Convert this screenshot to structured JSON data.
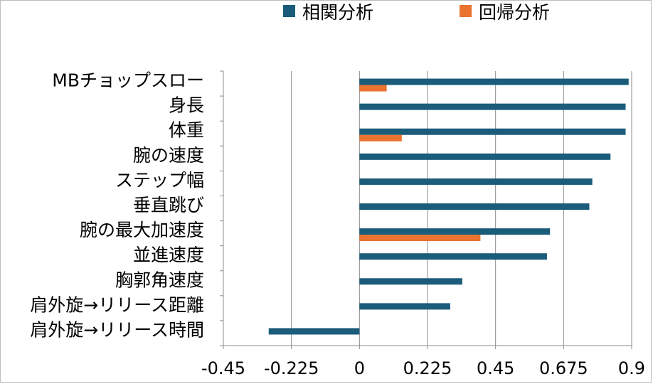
{
  "chart_data": {
    "type": "bar",
    "orientation": "horizontal",
    "categories": [
      "MBチョップスロー",
      "身長",
      "体重",
      "腕の速度",
      "ステップ幅",
      "垂直跳び",
      "腕の最大加速度",
      "並進速度",
      "胸郭角速度",
      "肩外旋→リリース距離",
      "肩外旋→リリース時間"
    ],
    "series": [
      {
        "name": "相関分析",
        "color": "#1a5c7a",
        "values": [
          0.89,
          0.88,
          0.88,
          0.83,
          0.77,
          0.76,
          0.63,
          0.62,
          0.34,
          0.3,
          -0.3
        ]
      },
      {
        "name": "回帰分析",
        "color": "#ea7330",
        "values": [
          0.09,
          null,
          0.14,
          null,
          null,
          null,
          0.4,
          null,
          null,
          null,
          null
        ]
      }
    ],
    "xlim": [
      -0.45,
      0.9
    ],
    "xticks": [
      "-0.45",
      "-0.225",
      "0",
      "0.225",
      "0.45",
      "0.675",
      "0.9"
    ],
    "grid": true,
    "legend": "top"
  }
}
